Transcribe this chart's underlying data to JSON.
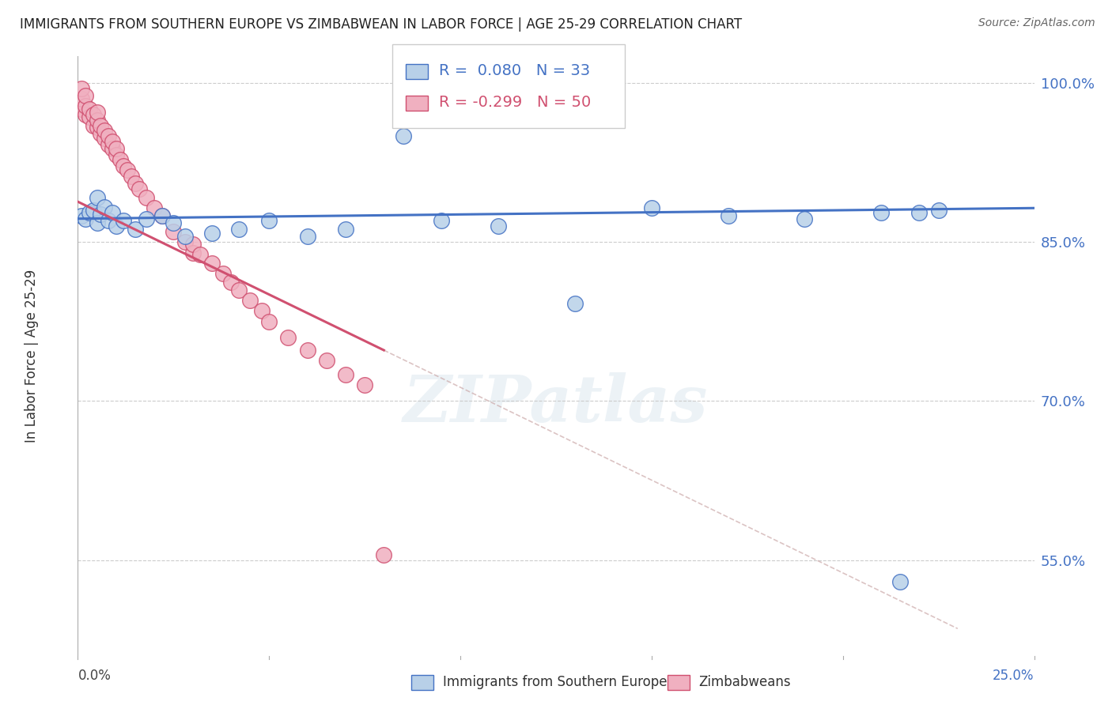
{
  "title": "IMMIGRANTS FROM SOUTHERN EUROPE VS ZIMBABWEAN IN LABOR FORCE | AGE 25-29 CORRELATION CHART",
  "source": "Source: ZipAtlas.com",
  "ylabel": "In Labor Force | Age 25-29",
  "xmin": 0.0,
  "xmax": 0.25,
  "ymin": 0.46,
  "ymax": 1.025,
  "yticks": [
    0.55,
    0.7,
    0.85,
    1.0
  ],
  "ytick_labels": [
    "55.0%",
    "70.0%",
    "85.0%",
    "100.0%"
  ],
  "blue_r": "0.080",
  "blue_n": "33",
  "pink_r": "-0.299",
  "pink_n": "50",
  "blue_color": "#b8d0e8",
  "blue_line_color": "#4472c4",
  "pink_color": "#f0b0c0",
  "pink_line_color": "#d05070",
  "legend_label_blue": "Immigrants from Southern Europe",
  "legend_label_pink": "Zimbabweans",
  "blue_scatter_x": [
    0.001,
    0.002,
    0.003,
    0.004,
    0.005,
    0.005,
    0.006,
    0.007,
    0.008,
    0.009,
    0.01,
    0.012,
    0.015,
    0.018,
    0.022,
    0.025,
    0.028,
    0.035,
    0.042,
    0.05,
    0.06,
    0.07,
    0.085,
    0.095,
    0.11,
    0.13,
    0.15,
    0.17,
    0.19,
    0.21,
    0.215,
    0.22,
    0.225
  ],
  "blue_scatter_y": [
    0.875,
    0.872,
    0.878,
    0.88,
    0.868,
    0.892,
    0.876,
    0.883,
    0.87,
    0.878,
    0.865,
    0.87,
    0.862,
    0.872,
    0.875,
    0.868,
    0.855,
    0.858,
    0.862,
    0.87,
    0.855,
    0.862,
    0.95,
    0.87,
    0.865,
    0.792,
    0.882,
    0.875,
    0.872,
    0.878,
    0.53,
    0.878,
    0.88
  ],
  "pink_scatter_x": [
    0.001,
    0.001,
    0.001,
    0.002,
    0.002,
    0.002,
    0.003,
    0.003,
    0.004,
    0.004,
    0.005,
    0.005,
    0.005,
    0.006,
    0.006,
    0.007,
    0.007,
    0.008,
    0.008,
    0.009,
    0.009,
    0.01,
    0.01,
    0.011,
    0.012,
    0.013,
    0.014,
    0.015,
    0.016,
    0.018,
    0.02,
    0.022,
    0.025,
    0.028,
    0.03,
    0.03,
    0.032,
    0.035,
    0.038,
    0.04,
    0.042,
    0.045,
    0.048,
    0.05,
    0.055,
    0.06,
    0.065,
    0.07,
    0.075,
    0.08
  ],
  "pink_scatter_y": [
    0.975,
    0.985,
    0.995,
    0.97,
    0.978,
    0.988,
    0.968,
    0.975,
    0.96,
    0.97,
    0.958,
    0.965,
    0.972,
    0.952,
    0.96,
    0.948,
    0.955,
    0.942,
    0.95,
    0.938,
    0.945,
    0.932,
    0.938,
    0.928,
    0.922,
    0.918,
    0.912,
    0.905,
    0.9,
    0.892,
    0.882,
    0.875,
    0.86,
    0.85,
    0.84,
    0.848,
    0.838,
    0.83,
    0.82,
    0.812,
    0.805,
    0.795,
    0.785,
    0.775,
    0.76,
    0.748,
    0.738,
    0.725,
    0.715,
    0.555
  ],
  "watermark_text": "ZIPatlas",
  "background_color": "#ffffff",
  "grid_color": "#cccccc",
  "pink_line_x0": 0.0,
  "pink_line_y0": 0.888,
  "pink_line_x1": 0.08,
  "pink_line_y1": 0.748,
  "blue_line_x0": 0.0,
  "blue_line_y0": 0.872,
  "blue_line_x1": 0.25,
  "blue_line_y1": 0.882
}
